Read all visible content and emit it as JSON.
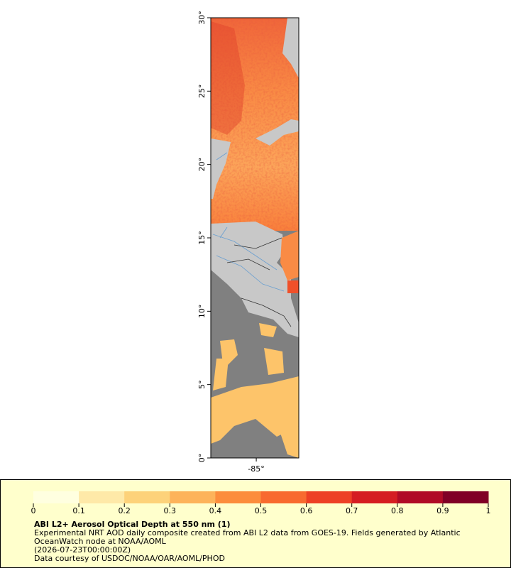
{
  "map": {
    "lat_range": [
      0,
      30
    ],
    "lon_range": [
      -88.1,
      -82.1
    ],
    "lat_ticks": [
      {
        "value": 0,
        "label": "0°"
      },
      {
        "value": 5,
        "label": "5°"
      },
      {
        "value": 10,
        "label": "10°"
      },
      {
        "value": 15,
        "label": "15°"
      },
      {
        "value": 20,
        "label": "20°"
      },
      {
        "value": 25,
        "label": "25°"
      },
      {
        "value": 30,
        "label": "30°"
      }
    ],
    "lon_ticks": [
      {
        "value": -85,
        "label": "-85°"
      }
    ]
  },
  "legend": {
    "range": [
      0,
      1
    ],
    "ticks": [
      0,
      0.1,
      0.2,
      0.3,
      0.4,
      0.5,
      0.6,
      0.7,
      0.8,
      0.9,
      1
    ],
    "colors": [
      "#ffffe0",
      "#fee9a8",
      "#fdd27a",
      "#fdb35a",
      "#fc8d3c",
      "#f86a2f",
      "#ed4025",
      "#d51d22",
      "#b00b26",
      "#800026"
    ],
    "title": "ABI L2+ Aerosol Optical Depth at 550 nm (1)",
    "lines": [
      "Experimental NRT AOD daily composite created from ABI L2 data from GOES-19. Fields generated by Atlantic",
      "OceanWatch node at NOAA/AOML",
      "(2026-07-23T00:00:00Z)",
      "Data courtesy of USDOC/NOAA/OAR/AOML/PHOD"
    ]
  }
}
